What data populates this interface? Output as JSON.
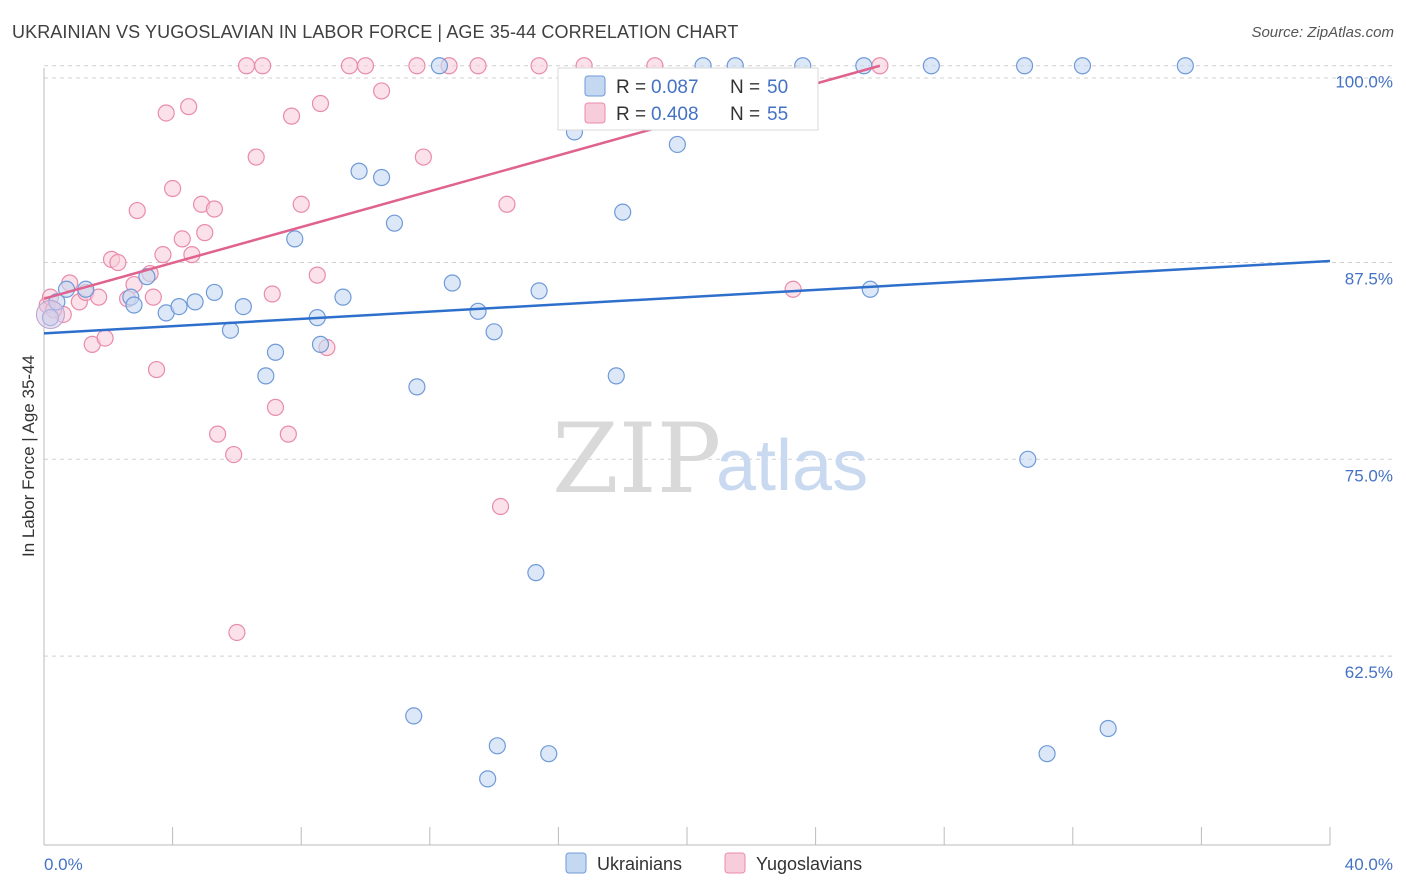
{
  "header": {
    "title": "UKRAINIAN VS YUGOSLAVIAN IN LABOR FORCE | AGE 35-44 CORRELATION CHART",
    "source": "Source: ZipAtlas.com"
  },
  "watermark": {
    "zip": "ZIP",
    "atlas": "atlas"
  },
  "colors": {
    "ukrainians_fill": "#c5d8f2",
    "ukrainians_stroke": "#6f9ad8",
    "ukrainians_line": "#2e6fcc",
    "yugoslavians_fill": "#f8cddb",
    "yugoslavians_stroke": "#e98cab",
    "yugoslavians_line": "#e0628e",
    "grid": "#d0d0d0",
    "axis_text": "#4472c4"
  },
  "legend": {
    "rows": [
      {
        "r_label": "R =",
        "r_value": "0.087",
        "n_label": "N =",
        "n_value": "50"
      },
      {
        "r_label": "R =",
        "r_value": "0.408",
        "n_label": "N =",
        "n_value": "55"
      }
    ]
  },
  "bottom_legend": {
    "items": [
      "Ukrainians",
      "Yugoslavians"
    ]
  },
  "chart_data": {
    "type": "scatter",
    "title": "UKRAINIAN VS YUGOSLAVIAN IN LABOR FORCE | AGE 35-44 CORRELATION CHART",
    "xlabel": "",
    "ylabel": "In Labor Force | Age 35-44",
    "xlim": [
      0,
      40
    ],
    "ylim": [
      50.5,
      101
    ],
    "x_tick_labels": [
      "0.0%",
      "40.0%"
    ],
    "y_ticks": [
      62.5,
      75.0,
      87.5,
      100.0
    ],
    "y_tick_labels": [
      "62.5%",
      "75.0%",
      "87.5%",
      "100.0%"
    ],
    "grid": true,
    "legend_position": "top-center",
    "series": [
      {
        "name": "Ukrainians",
        "r": 0.087,
        "n": 50,
        "trend": {
          "x": [
            0,
            40
          ],
          "y": [
            83.0,
            87.6
          ]
        },
        "points": [
          [
            0.2,
            84.0
          ],
          [
            0.4,
            85.0
          ],
          [
            0.7,
            85.8
          ],
          [
            1.3,
            85.8
          ],
          [
            2.7,
            85.3
          ],
          [
            2.8,
            84.8
          ],
          [
            3.2,
            86.6
          ],
          [
            3.8,
            84.3
          ],
          [
            4.2,
            84.7
          ],
          [
            4.7,
            85.0
          ],
          [
            5.3,
            85.6
          ],
          [
            5.8,
            83.2
          ],
          [
            6.2,
            84.7
          ],
          [
            6.9,
            80.3
          ],
          [
            7.2,
            81.8
          ],
          [
            7.8,
            89.0
          ],
          [
            8.5,
            84.0
          ],
          [
            8.6,
            82.3
          ],
          [
            9.3,
            85.3
          ],
          [
            9.8,
            93.3
          ],
          [
            10.5,
            92.9
          ],
          [
            10.9,
            90.0
          ],
          [
            11.6,
            79.6
          ],
          [
            12.3,
            100.0
          ],
          [
            12.7,
            86.2
          ],
          [
            13.5,
            84.4
          ],
          [
            14.0,
            83.1
          ],
          [
            15.4,
            85.7
          ],
          [
            16.5,
            95.8
          ],
          [
            17.0,
            96.8
          ],
          [
            17.8,
            80.3
          ],
          [
            18.0,
            90.7
          ],
          [
            19.7,
            95.0
          ],
          [
            20.5,
            100.0
          ],
          [
            21.5,
            100.0
          ],
          [
            23.6,
            100.0
          ],
          [
            25.5,
            100.0
          ],
          [
            25.7,
            85.8
          ],
          [
            27.6,
            100.0
          ],
          [
            30.5,
            100.0
          ],
          [
            30.6,
            75.0
          ],
          [
            32.3,
            100.0
          ],
          [
            35.5,
            100.0
          ],
          [
            15.3,
            67.8
          ],
          [
            11.5,
            58.7
          ],
          [
            14.1,
            56.8
          ],
          [
            13.8,
            54.7
          ],
          [
            15.7,
            56.3
          ],
          [
            31.2,
            56.3
          ],
          [
            33.1,
            57.9
          ]
        ]
      },
      {
        "name": "Yugoslavians",
        "r": 0.408,
        "n": 55,
        "trend": {
          "x": [
            0,
            26
          ],
          "y": [
            85.2,
            100.0
          ]
        },
        "points": [
          [
            0.1,
            84.8
          ],
          [
            0.2,
            85.3
          ],
          [
            0.6,
            84.2
          ],
          [
            0.8,
            86.2
          ],
          [
            1.1,
            85.0
          ],
          [
            1.3,
            85.6
          ],
          [
            1.5,
            82.3
          ],
          [
            1.7,
            85.3
          ],
          [
            1.9,
            82.7
          ],
          [
            2.1,
            87.7
          ],
          [
            2.3,
            87.5
          ],
          [
            2.6,
            85.2
          ],
          [
            2.8,
            86.1
          ],
          [
            2.9,
            90.8
          ],
          [
            3.3,
            86.8
          ],
          [
            3.4,
            85.3
          ],
          [
            3.5,
            80.7
          ],
          [
            3.7,
            88.0
          ],
          [
            3.8,
            97.0
          ],
          [
            4.0,
            92.2
          ],
          [
            4.3,
            89.0
          ],
          [
            4.5,
            97.4
          ],
          [
            4.6,
            88.0
          ],
          [
            4.9,
            91.2
          ],
          [
            5.0,
            89.4
          ],
          [
            5.3,
            90.9
          ],
          [
            5.4,
            76.6
          ],
          [
            5.9,
            75.3
          ],
          [
            6.0,
            64.0
          ],
          [
            6.3,
            100.0
          ],
          [
            6.6,
            94.2
          ],
          [
            6.8,
            100.0
          ],
          [
            7.1,
            85.5
          ],
          [
            7.2,
            78.3
          ],
          [
            7.6,
            76.6
          ],
          [
            7.7,
            96.8
          ],
          [
            8.0,
            91.2
          ],
          [
            8.5,
            86.7
          ],
          [
            8.6,
            97.6
          ],
          [
            8.8,
            82.1
          ],
          [
            9.5,
            100.0
          ],
          [
            10.0,
            100.0
          ],
          [
            10.5,
            98.4
          ],
          [
            11.6,
            100.0
          ],
          [
            11.8,
            94.2
          ],
          [
            12.6,
            100.0
          ],
          [
            13.5,
            100.0
          ],
          [
            14.2,
            72.0
          ],
          [
            14.4,
            91.2
          ],
          [
            15.4,
            100.0
          ],
          [
            16.8,
            100.0
          ],
          [
            19.0,
            100.0
          ],
          [
            23.3,
            85.8
          ],
          [
            26.0,
            100.0
          ],
          [
            0.3,
            84.5
          ]
        ]
      }
    ]
  }
}
